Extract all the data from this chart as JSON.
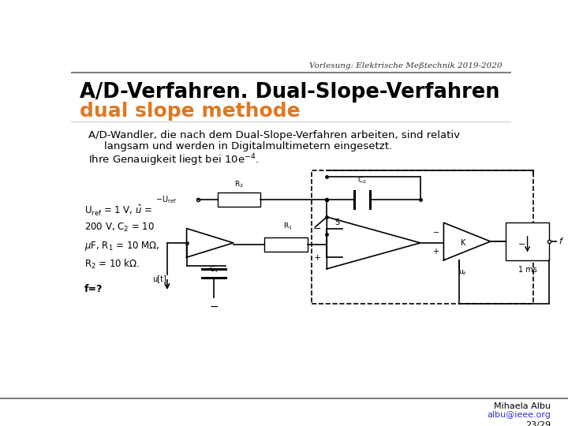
{
  "bg_color": "#ffffff",
  "top_label": "Vorlesung: Elektrische Meßtechnik 2019-2020",
  "title_line1": "A/D-Verfahren. Dual-Slope-Verfahren",
  "title_line2": "dual slope methode",
  "title_color": "#000000",
  "subtitle_color": "#e07820",
  "body_line1": "A/D-Wandler, die nach dem Dual-Slope-Verfahren arbeiten, sind relativ",
  "body_line2": "langsam und werden in Digitalmultimetern eingesetzt.",
  "body_line3": "Ihre Genauigkeit liegt bei 10e",
  "body_line3_sup": "-4",
  "body_line3_end": ".",
  "left_text5": "f=?",
  "footer_name": "Mihaela Albu",
  "footer_email": "albu@ieee.org",
  "footer_page": "23/29",
  "separator_color": "#808080",
  "footer_link_color": "#3333cc"
}
